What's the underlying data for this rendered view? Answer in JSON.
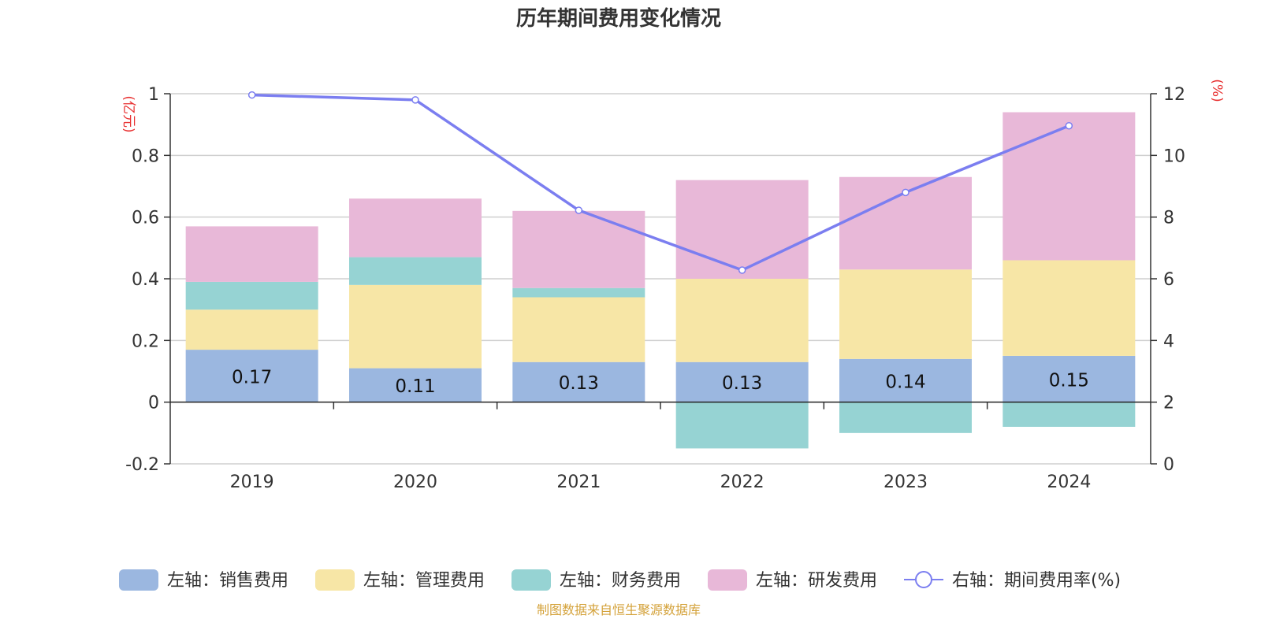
{
  "chart_data": {
    "type": "bar",
    "title": "历年期间费用变化情况",
    "categories": [
      "2019",
      "2020",
      "2021",
      "2022",
      "2023",
      "2024"
    ],
    "left_axis": {
      "unit": "(亿元)",
      "ylim": [
        -0.2,
        1
      ],
      "ticks": [
        "1",
        "0.8",
        "0.6",
        "0.4",
        "0.2",
        "0",
        "-0.2"
      ]
    },
    "right_axis": {
      "unit": "(%)",
      "ylim": [
        0,
        12
      ],
      "ticks": [
        "12",
        "10",
        "8",
        "6",
        "4",
        "2",
        "0"
      ]
    },
    "series": [
      {
        "name": "左轴：销售费用",
        "axis": "left",
        "color": "#9bb7e0",
        "values": [
          0.17,
          0.11,
          0.13,
          0.13,
          0.14,
          0.15
        ],
        "labels": [
          "0.17",
          "0.11",
          "0.13",
          "0.13",
          "0.14",
          "0.15"
        ]
      },
      {
        "name": "左轴：管理费用",
        "axis": "left",
        "color": "#f7e6a6",
        "values": [
          0.13,
          0.27,
          0.21,
          0.27,
          0.29,
          0.31
        ]
      },
      {
        "name": "左轴：财务费用",
        "axis": "left",
        "color": "#96d3d3",
        "values": [
          0.09,
          0.09,
          0.03,
          -0.15,
          -0.1,
          -0.08
        ]
      },
      {
        "name": "左轴：研发费用",
        "axis": "left",
        "color": "#e8b8d8",
        "values": [
          0.18,
          0.19,
          0.25,
          0.32,
          0.3,
          0.48
        ]
      },
      {
        "name": "右轴：期间费用率(%)",
        "axis": "right",
        "type": "line",
        "color": "#7b7ef0",
        "values": [
          11.96,
          11.8,
          8.22,
          6.28,
          8.8,
          10.96
        ]
      }
    ],
    "legend_position": "bottom",
    "grid": true
  },
  "source_note": "制图数据来自恒生聚源数据库"
}
